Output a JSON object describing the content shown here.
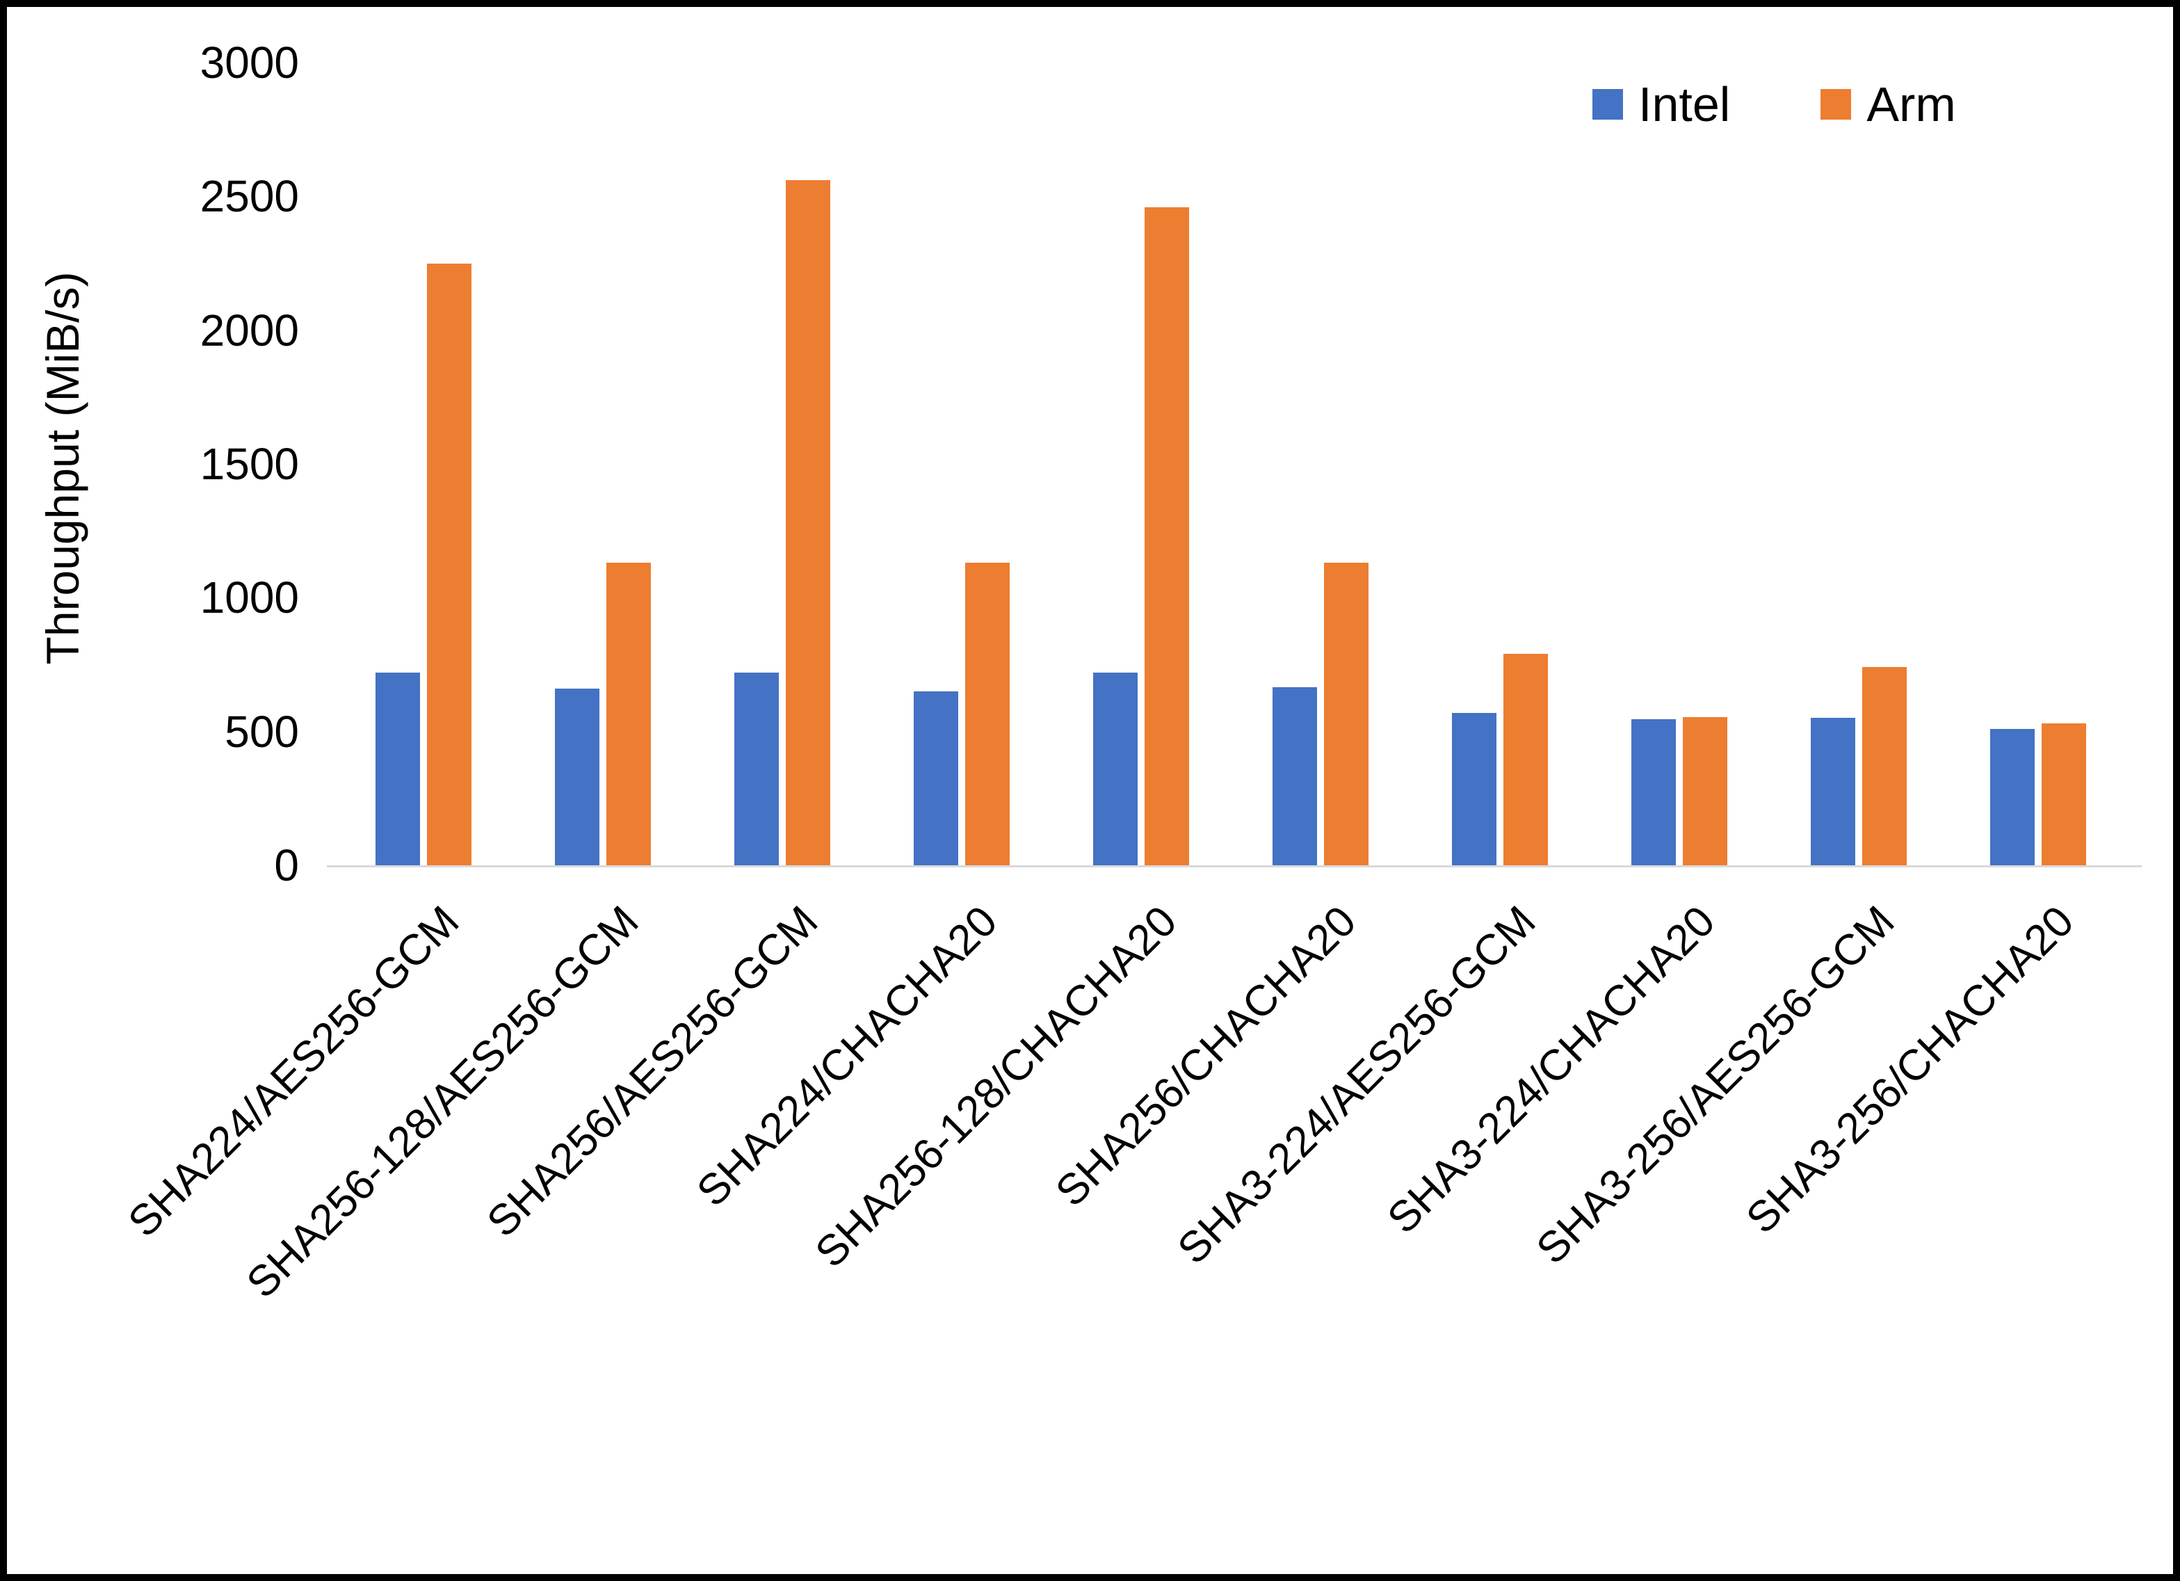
{
  "chart_data": {
    "type": "bar",
    "title": "",
    "xlabel": "",
    "ylabel": "Throughput (MiB/s)",
    "ylim": [
      0,
      3000
    ],
    "ytick_step": 500,
    "grid": false,
    "legend_position": "top-right",
    "categories": [
      "SHA224/AES256-GCM",
      "SHA256-128/AES256-GCM",
      "SHA256/AES256-GCM",
      "SHA224/CHACHA20",
      "SHA256-128/CHACHA20",
      "SHA256/CHACHA20",
      "SHA3-224/AES256-GCM",
      "SHA3-224/CHACHA20",
      "SHA3-256/AES256-GCM",
      "SHA3-256/CHACHA20"
    ],
    "series": [
      {
        "name": "Intel",
        "color": "#4472C4",
        "values": [
          720,
          660,
          720,
          650,
          720,
          665,
          570,
          545,
          550,
          510
        ]
      },
      {
        "name": "Arm",
        "color": "#ED7D31",
        "values": [
          2250,
          1130,
          2560,
          1130,
          2460,
          1130,
          790,
          555,
          740,
          530
        ]
      }
    ]
  }
}
